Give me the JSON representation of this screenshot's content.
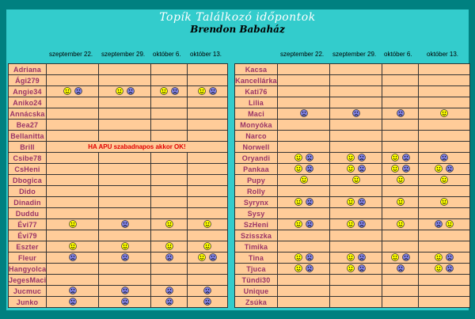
{
  "title": "Topík Találkozó időpontok",
  "subtitle": "Brendon Babaház",
  "colors": {
    "outer": "#008080",
    "panel": "#33cccc",
    "cell": "#ffcc99",
    "name": "#993366",
    "note": "#e00000",
    "yes": "#ffff00",
    "no": "#8080e0"
  },
  "legend_icons": {
    "y": "happy-smiley-icon",
    "n": "sad-smiley-icon"
  },
  "dates": [
    "szeptember 22.",
    "szeptember 29.",
    "október 6.",
    "október 13."
  ],
  "left": [
    {
      "name": "Adriana",
      "cells": [
        "",
        "",
        "",
        ""
      ]
    },
    {
      "name": "Ági279",
      "cells": [
        "",
        "",
        "",
        ""
      ]
    },
    {
      "name": "Angie34",
      "cells": [
        "yn",
        "yn",
        "yn",
        "yn"
      ]
    },
    {
      "name": "Aniko24",
      "cells": [
        "",
        "",
        "",
        ""
      ]
    },
    {
      "name": "Annácska",
      "cells": [
        "",
        "",
        "",
        ""
      ]
    },
    {
      "name": "Bea27",
      "cells": [
        "",
        "",
        "",
        ""
      ]
    },
    {
      "name": "Bellanitta",
      "cells": [
        "",
        "",
        "",
        ""
      ]
    },
    {
      "name": "Brill",
      "note": "HA APU szabadnapos akkor OK!"
    },
    {
      "name": "Csibe78",
      "cells": [
        "",
        "",
        "",
        ""
      ]
    },
    {
      "name": "CsHeni",
      "cells": [
        "",
        "",
        "",
        ""
      ]
    },
    {
      "name": "Dbogica",
      "cells": [
        "",
        "",
        "",
        ""
      ]
    },
    {
      "name": "Dido",
      "cells": [
        "",
        "",
        "",
        ""
      ]
    },
    {
      "name": "Dinadin",
      "cells": [
        "",
        "",
        "",
        ""
      ]
    },
    {
      "name": "Duddu",
      "cells": [
        "",
        "",
        "",
        ""
      ]
    },
    {
      "name": "Évi77",
      "cells": [
        "y",
        "n",
        "y",
        "y"
      ]
    },
    {
      "name": "Évi79",
      "cells": [
        "",
        "",
        "",
        ""
      ]
    },
    {
      "name": "Eszter",
      "cells": [
        "y",
        "y",
        "y",
        "y"
      ]
    },
    {
      "name": "Fleur",
      "cells": [
        "n",
        "n",
        "n",
        "yn"
      ]
    },
    {
      "name": "Hangyolca",
      "cells": [
        "",
        "",
        "",
        ""
      ]
    },
    {
      "name": "JegesMaci",
      "cells": [
        "",
        "",
        "",
        ""
      ]
    },
    {
      "name": "Jucmuc",
      "cells": [
        "n",
        "n",
        "n",
        "n"
      ]
    },
    {
      "name": "Junko",
      "cells": [
        "n",
        "n",
        "n",
        "n"
      ]
    }
  ],
  "right": [
    {
      "name": "Kacsa",
      "cells": [
        "",
        "",
        "",
        ""
      ]
    },
    {
      "name": "Kancellárka",
      "cells": [
        "",
        "",
        "",
        ""
      ]
    },
    {
      "name": "Kati76",
      "cells": [
        "",
        "",
        "",
        ""
      ]
    },
    {
      "name": "Lilia",
      "cells": [
        "",
        "",
        "",
        ""
      ]
    },
    {
      "name": "Maci",
      "cells": [
        "n",
        "n",
        "n",
        "y"
      ]
    },
    {
      "name": "Monyóka",
      "cells": [
        "",
        "",
        "",
        ""
      ]
    },
    {
      "name": "Narco",
      "cells": [
        "",
        "",
        "",
        ""
      ]
    },
    {
      "name": "Norwell",
      "cells": [
        "",
        "",
        "",
        ""
      ]
    },
    {
      "name": "Oryandi",
      "cells": [
        "yn",
        "yn",
        "yn",
        "n"
      ]
    },
    {
      "name": "Pankaa",
      "cells": [
        "yn",
        "yn",
        "yn",
        "yn"
      ]
    },
    {
      "name": "Pupy",
      "cells": [
        "y",
        "y",
        "y",
        "y"
      ]
    },
    {
      "name": "Rolly",
      "cells": [
        "",
        "",
        "",
        ""
      ]
    },
    {
      "name": "Syrynx",
      "cells": [
        "yn",
        "yn",
        "y",
        "y"
      ]
    },
    {
      "name": "Sysy",
      "cells": [
        "",
        "",
        "",
        ""
      ]
    },
    {
      "name": "SzHeni",
      "cells": [
        "yn",
        "yn",
        "y",
        "ny"
      ]
    },
    {
      "name": "Szisszka",
      "cells": [
        "",
        "",
        "",
        ""
      ]
    },
    {
      "name": "Timika",
      "cells": [
        "",
        "",
        "",
        ""
      ]
    },
    {
      "name": "Tina",
      "cells": [
        "yn",
        "yn",
        "yn",
        "yn"
      ]
    },
    {
      "name": "Tjuca",
      "cells": [
        "yn",
        "yn",
        "n",
        "yn"
      ]
    },
    {
      "name": "Tündi30",
      "cells": [
        "",
        "",
        "",
        ""
      ]
    },
    {
      "name": "Unique",
      "cells": [
        "",
        "",
        "",
        ""
      ]
    },
    {
      "name": "Zsúka",
      "cells": [
        "",
        "",
        "",
        ""
      ]
    }
  ]
}
